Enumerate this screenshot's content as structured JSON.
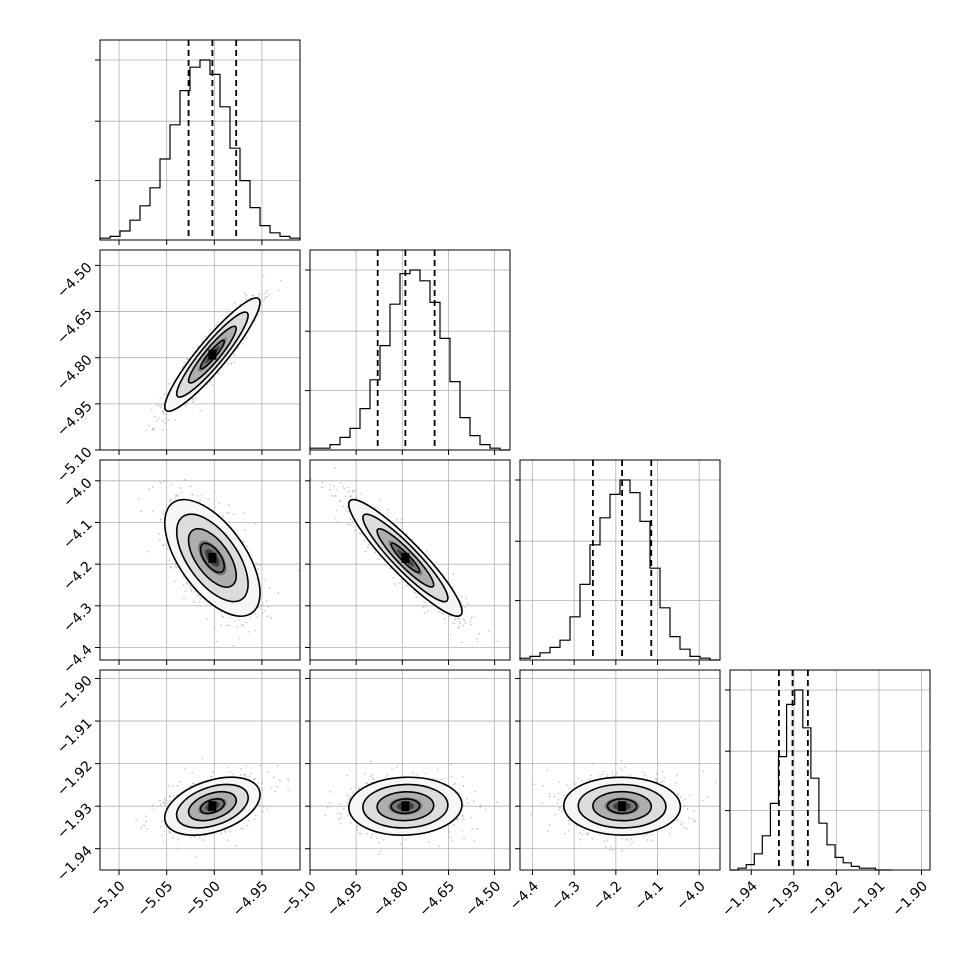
{
  "chart_data": {
    "type": "corner",
    "grid": true,
    "parameters": [
      {
        "range": [
          -5.12,
          -4.91
        ],
        "ticks": [
          -5.1,
          -5.05,
          -5.0,
          -4.95
        ],
        "tick_labels": [
          "−5.10",
          "−5.05",
          "−5.00",
          "−4.95"
        ],
        "quantiles": [
          -5.027,
          -5.002,
          -4.977
        ],
        "hist": {
          "edges_start": -5.12,
          "bin_width": 0.0105,
          "counts": [
            0.01,
            0.02,
            0.05,
            0.11,
            0.19,
            0.29,
            0.45,
            0.64,
            0.83,
            0.96,
            1.0,
            0.92,
            0.74,
            0.51,
            0.33,
            0.18,
            0.08,
            0.04,
            0.02,
            0.01
          ]
        }
      },
      {
        "range": [
          -5.1,
          -4.45
        ],
        "ticks": [
          -5.1,
          -4.95,
          -4.8,
          -4.65,
          -4.5
        ],
        "tick_labels": [
          "−5.10",
          "−4.95",
          "−4.80",
          "−4.65",
          "−4.50"
        ],
        "quantiles": [
          -4.88,
          -4.79,
          -4.695
        ],
        "hist": {
          "edges_start": -5.1,
          "bin_width": 0.0325,
          "counts": [
            0.01,
            0.01,
            0.03,
            0.07,
            0.12,
            0.23,
            0.39,
            0.58,
            0.81,
            0.98,
            1.0,
            0.94,
            0.82,
            0.62,
            0.38,
            0.18,
            0.08,
            0.03,
            0.01,
            0.0
          ]
        }
      },
      {
        "range": [
          -4.43,
          -3.95
        ],
        "ticks": [
          -4.4,
          -4.3,
          -4.2,
          -4.1,
          -4.0
        ],
        "tick_labels": [
          "−4.4",
          "−4.3",
          "−4.2",
          "−4.1",
          "−4.0"
        ],
        "quantiles": [
          -4.255,
          -4.185,
          -4.115
        ],
        "hist": {
          "edges_start": -4.43,
          "bin_width": 0.024,
          "counts": [
            0.01,
            0.02,
            0.04,
            0.07,
            0.11,
            0.24,
            0.42,
            0.64,
            0.79,
            0.92,
            1.0,
            0.93,
            0.77,
            0.51,
            0.29,
            0.13,
            0.06,
            0.02,
            0.01,
            0.0
          ]
        }
      },
      {
        "range": [
          -1.945,
          -1.898
        ],
        "ticks": [
          -1.94,
          -1.93,
          -1.92,
          -1.91,
          -1.9
        ],
        "tick_labels": [
          "−1.94",
          "−1.93",
          "−1.92",
          "−1.91",
          "−1.90"
        ],
        "quantiles": [
          -1.9335,
          -1.9303,
          -1.9267
        ],
        "hist": {
          "edges_start": -1.945,
          "bin_width": 0.0019,
          "counts": [
            0.0,
            0.01,
            0.03,
            0.09,
            0.19,
            0.37,
            0.63,
            0.92,
            1.0,
            0.79,
            0.51,
            0.26,
            0.14,
            0.07,
            0.04,
            0.02,
            0.01,
            0.01,
            0.0,
            0.0
          ]
        }
      }
    ],
    "pairs": [
      {
        "row": 1,
        "col": 0,
        "center": [
          -5.002,
          -4.79
        ],
        "sigma": [
          0.025,
          0.092
        ],
        "rho": 0.92
      },
      {
        "row": 2,
        "col": 0,
        "center": [
          -5.002,
          -4.185
        ],
        "sigma": [
          0.025,
          0.07
        ],
        "rho": -0.6
      },
      {
        "row": 2,
        "col": 1,
        "center": [
          -4.79,
          -4.185
        ],
        "sigma": [
          0.092,
          0.07
        ],
        "rho": -0.92
      },
      {
        "row": 3,
        "col": 0,
        "center": [
          -5.002,
          -1.93
        ],
        "sigma": [
          0.025,
          0.0034
        ],
        "rho": 0.4
      },
      {
        "row": 3,
        "col": 1,
        "center": [
          -4.79,
          -1.93
        ],
        "sigma": [
          0.092,
          0.0034
        ],
        "rho": 0.05
      },
      {
        "row": 3,
        "col": 2,
        "center": [
          -4.185,
          -1.93
        ],
        "sigma": [
          0.07,
          0.0034
        ],
        "rho": -0.02
      }
    ],
    "contour_levels_sigma": [
      0.5,
      1.0,
      1.5,
      2.0
    ]
  }
}
